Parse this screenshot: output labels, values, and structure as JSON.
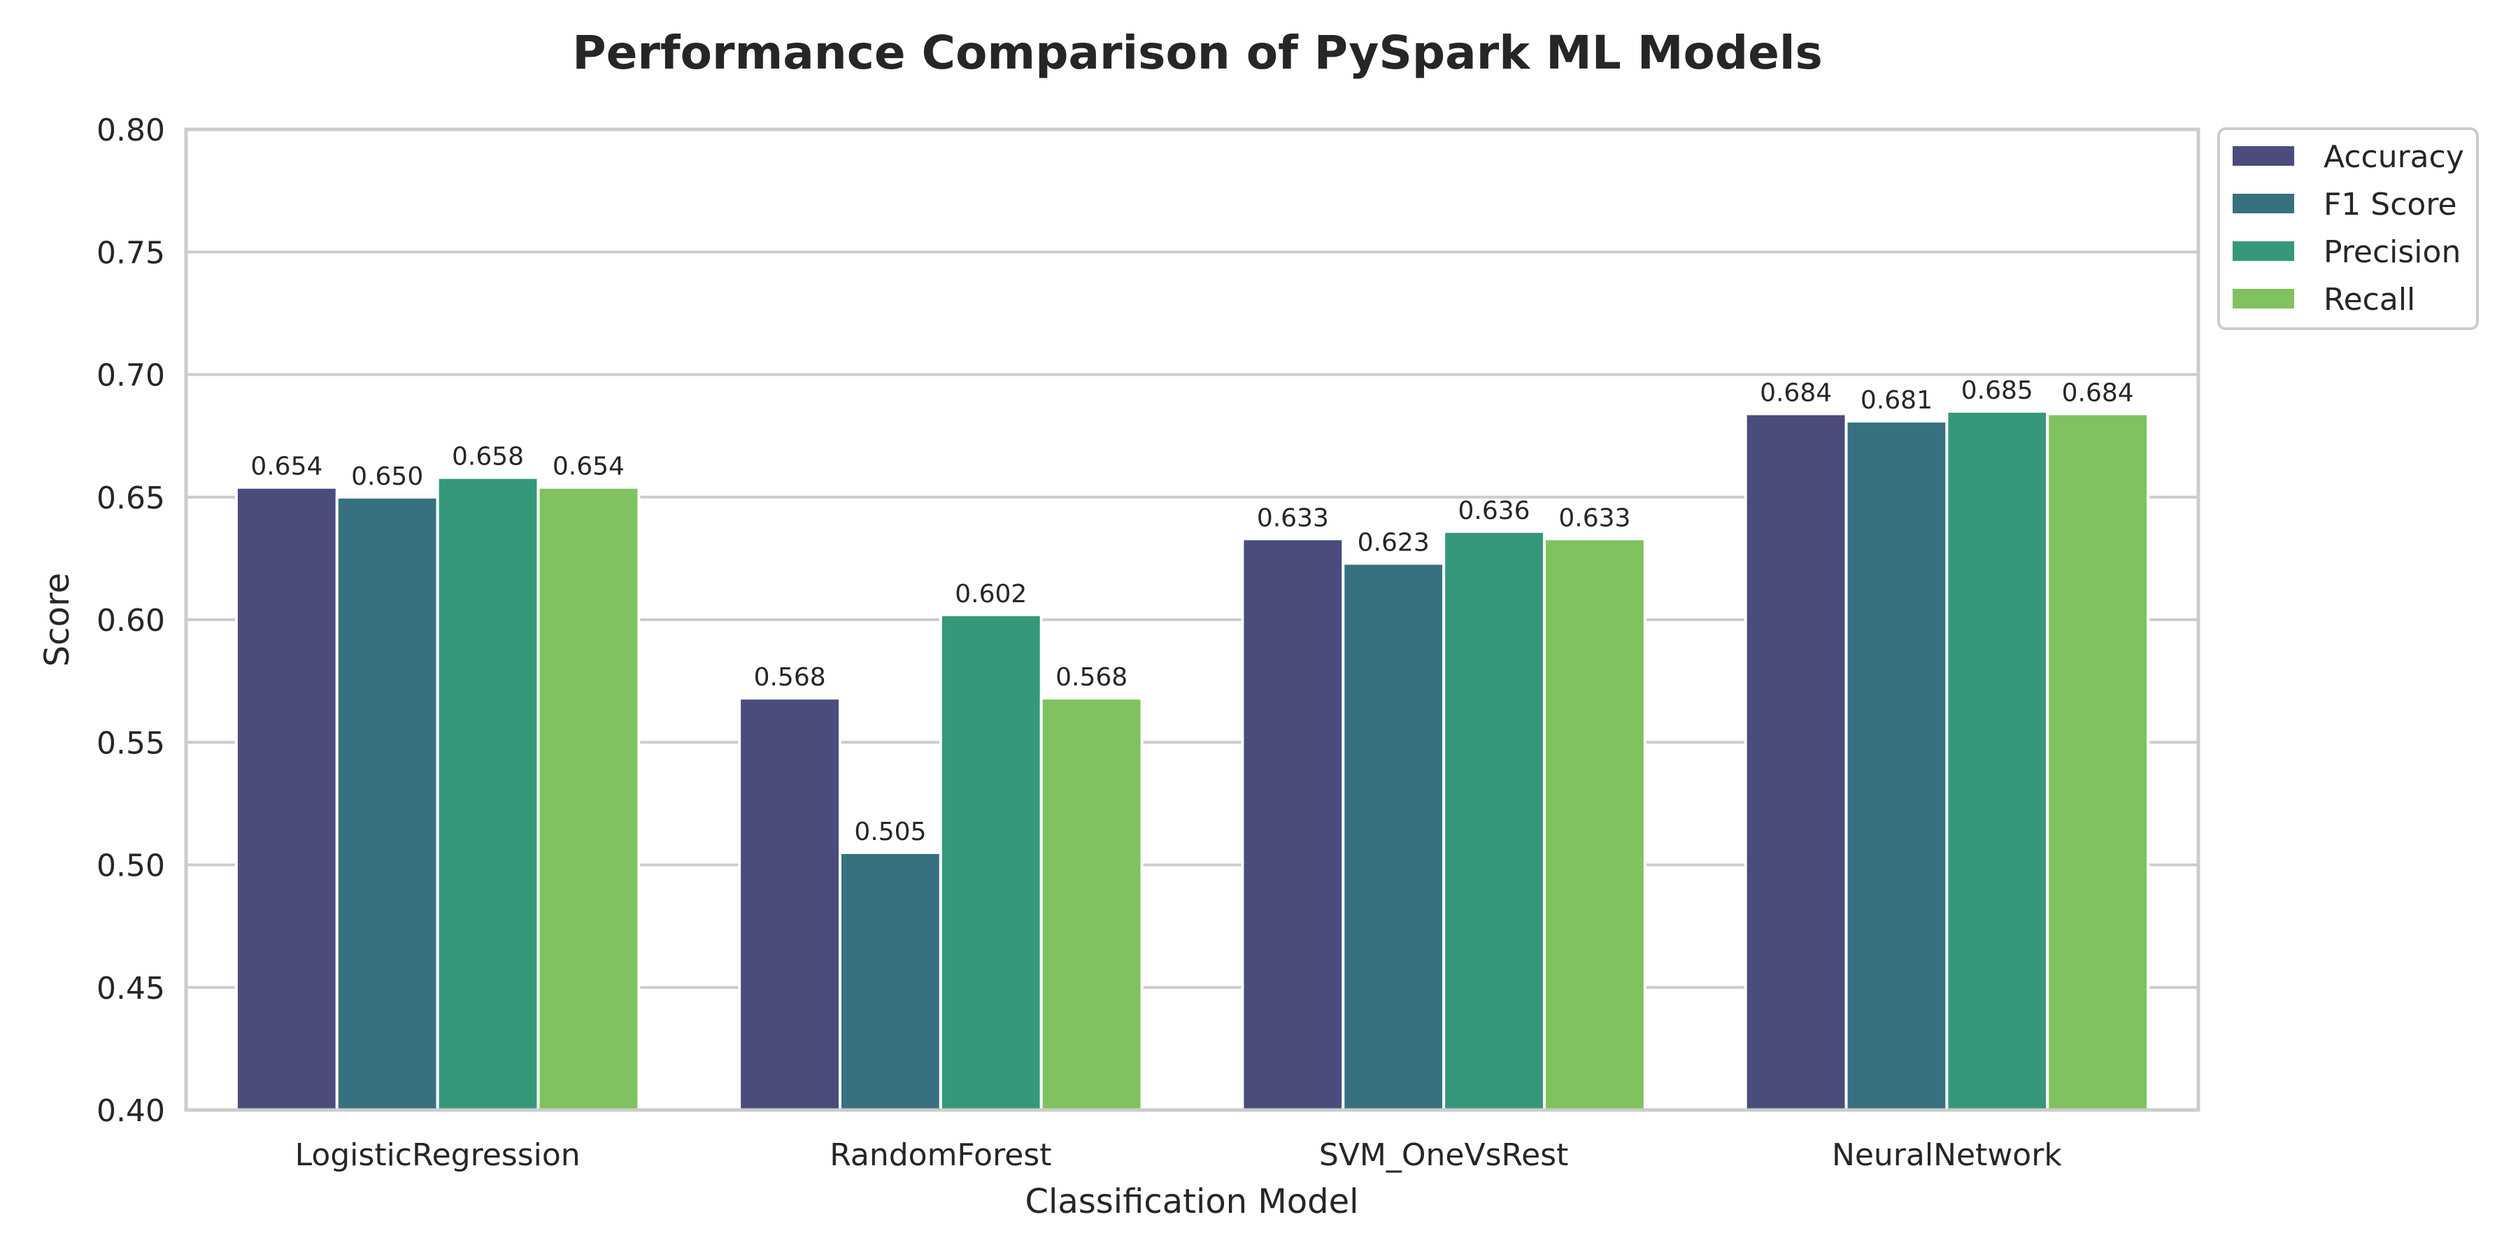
{
  "chart_data": {
    "type": "bar",
    "title": "Performance Comparison of PySpark ML Models",
    "xlabel": "Classification Model",
    "ylabel": "Score",
    "ylim": [
      0.4,
      0.8
    ],
    "yticks": [
      0.4,
      0.45,
      0.5,
      0.55,
      0.6,
      0.65,
      0.7,
      0.75,
      0.8
    ],
    "ytick_labels": [
      "0.40",
      "0.45",
      "0.50",
      "0.55",
      "0.60",
      "0.65",
      "0.70",
      "0.75",
      "0.80"
    ],
    "grid": true,
    "legend_position": "outside-top-right",
    "categories": [
      "LogisticRegression",
      "RandomForest",
      "SVM_OneVsRest",
      "NeuralNetwork"
    ],
    "series": [
      {
        "name": "Accuracy",
        "color": "#4a4c7c",
        "values": [
          0.654,
          0.568,
          0.633,
          0.684
        ],
        "labels": [
          "0.654",
          "0.568",
          "0.633",
          "0.684"
        ]
      },
      {
        "name": "F1 Score",
        "color": "#37717f",
        "values": [
          0.65,
          0.505,
          0.623,
          0.681
        ],
        "labels": [
          "0.650",
          "0.505",
          "0.623",
          "0.681"
        ]
      },
      {
        "name": "Precision",
        "color": "#35987b",
        "values": [
          0.658,
          0.602,
          0.636,
          0.685
        ],
        "labels": [
          "0.658",
          "0.602",
          "0.636",
          "0.685"
        ]
      },
      {
        "name": "Recall",
        "color": "#80c25f",
        "values": [
          0.654,
          0.568,
          0.633,
          0.684
        ],
        "labels": [
          "0.654",
          "0.568",
          "0.633",
          "0.684"
        ]
      }
    ]
  }
}
